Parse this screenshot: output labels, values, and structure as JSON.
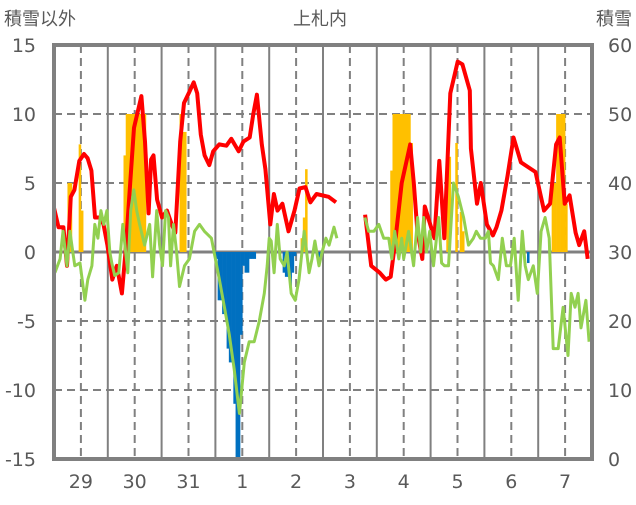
{
  "chart_data": {
    "type": "bar+line",
    "title": "上札内",
    "ylabel_left": "積雪以外",
    "ylabel_right": "積雪",
    "ylim_left": [
      -15,
      15
    ],
    "ylim_right": [
      0,
      60
    ],
    "yticks_left": [
      "15",
      "10",
      "5",
      "0",
      "-5",
      "-10",
      "-15"
    ],
    "yticks_right": [
      "60",
      "50",
      "40",
      "30",
      "20",
      "10",
      "0"
    ],
    "x_unit": "hours since start of day 29",
    "xlim": [
      0,
      240
    ],
    "xtick_labels": [
      "29",
      "30",
      "31",
      "1",
      "2",
      "3",
      "4",
      "5",
      "6",
      "7"
    ],
    "grid": true,
    "colors": {
      "red": "#FF0000",
      "green": "#92D050",
      "orange": "#FFC000",
      "blue": "#0070C0",
      "purple": "#7030A0",
      "frame": "#808080",
      "missing": "#A6A6A6"
    },
    "series": [
      {
        "name": "red-line",
        "axis": "left",
        "color": "#FF0000",
        "points": [
          [
            0,
            3.2
          ],
          [
            2,
            1.8
          ],
          [
            4.2,
            1.8
          ],
          [
            5.8,
            -1
          ],
          [
            7.5,
            4
          ],
          [
            9.1,
            4.5
          ],
          [
            11.3,
            6.6
          ],
          [
            13.4,
            7.1
          ],
          [
            15,
            6.8
          ],
          [
            16.7,
            5.9
          ],
          [
            18.3,
            2.5
          ],
          [
            20.5,
            2.5
          ],
          [
            22.1,
            2
          ],
          [
            23.8,
            0.5
          ],
          [
            26,
            -2
          ],
          [
            28,
            -1
          ],
          [
            30.3,
            -3
          ],
          [
            31.9,
            0
          ],
          [
            34,
            5
          ],
          [
            35.7,
            9
          ],
          [
            39,
            11.3
          ],
          [
            40.6,
            8
          ],
          [
            42.2,
            2.8
          ],
          [
            43.3,
            6.7
          ],
          [
            44.4,
            7
          ],
          [
            46,
            3.8
          ],
          [
            48.2,
            2.5
          ],
          [
            50.4,
            3
          ],
          [
            52.5,
            2
          ],
          [
            54.1,
            1.4
          ],
          [
            56.3,
            8
          ],
          [
            58,
            10.8
          ],
          [
            60.1,
            11.5
          ],
          [
            62.3,
            12.3
          ],
          [
            63.9,
            11.5
          ],
          [
            65.5,
            8.5
          ],
          [
            67.2,
            7
          ],
          [
            69.3,
            6.3
          ],
          [
            71,
            7.3
          ],
          [
            73.7,
            7.8
          ],
          [
            76.9,
            7.7
          ],
          [
            79.1,
            8.2
          ],
          [
            81.3,
            7.6
          ],
          [
            82.4,
            7.3
          ],
          [
            84.5,
            8
          ],
          [
            87.3,
            8.3
          ],
          [
            88.9,
            10
          ],
          [
            90.5,
            11.4
          ],
          [
            92.7,
            7.8
          ],
          [
            94.3,
            6
          ],
          [
            96.5,
            2
          ],
          [
            98.1,
            4.2
          ],
          [
            99.7,
            3
          ],
          [
            101.9,
            3.5
          ],
          [
            104.6,
            1.5
          ],
          [
            107.3,
            3
          ],
          [
            109.5,
            4.6
          ],
          [
            112.2,
            4.7
          ],
          [
            114.4,
            3.6
          ],
          [
            117.1,
            4.2
          ],
          [
            122.5,
            4
          ],
          [
            125.8,
            3.6
          ],
          null,
          [
            138.8,
            2.7
          ],
          [
            141.5,
            -1
          ],
          [
            145.3,
            -1.5
          ],
          [
            148,
            -2
          ],
          [
            150.2,
            -1.8
          ],
          [
            152.4,
            1
          ],
          [
            155.1,
            5
          ],
          [
            158.9,
            7.8
          ],
          [
            160.5,
            5
          ],
          [
            162.1,
            1.5
          ],
          [
            164.3,
            -0.5
          ],
          [
            165.4,
            3.3
          ],
          [
            169.7,
            1
          ],
          [
            171.9,
            6.6
          ],
          [
            174.1,
            1
          ],
          [
            176.8,
            11.5
          ],
          [
            180.1,
            13.8
          ],
          [
            182.2,
            13.6
          ],
          [
            185.5,
            11.7
          ],
          [
            186,
            7.5
          ],
          [
            188.7,
            3.5
          ],
          [
            190.4,
            5
          ],
          [
            193.1,
            2
          ],
          [
            195.8,
            1.2
          ],
          [
            197.4,
            1.8
          ],
          [
            199.6,
            3
          ],
          [
            202.3,
            5.5
          ],
          [
            205,
            8.3
          ],
          [
            208.3,
            6.5
          ],
          [
            211,
            6.2
          ],
          [
            214.8,
            5.8
          ],
          [
            218.6,
            3
          ],
          [
            221.3,
            3.5
          ],
          [
            224,
            7.8
          ],
          [
            225.6,
            8.3
          ],
          [
            227.8,
            3.5
          ],
          [
            230,
            4.1
          ],
          [
            232.7,
            1.4
          ],
          [
            234.3,
            0.5
          ],
          [
            236.5,
            1.5
          ],
          [
            238.1,
            -0.5
          ]
        ]
      },
      {
        "name": "green-line",
        "axis": "left",
        "color": "#92D050",
        "points": [
          [
            0.4,
            -1.5
          ],
          [
            2.7,
            -0.5
          ],
          [
            4,
            1.5
          ],
          [
            5.8,
            -1
          ],
          [
            7.1,
            1.5
          ],
          [
            8.4,
            0
          ],
          [
            9.3,
            -1
          ],
          [
            11.6,
            -0.8
          ],
          [
            13.8,
            -3.5
          ],
          [
            15.1,
            -2
          ],
          [
            16.9,
            -1
          ],
          [
            18.2,
            2
          ],
          [
            19.6,
            1
          ],
          [
            20.9,
            3
          ],
          [
            22.2,
            2
          ],
          [
            23.6,
            3
          ],
          [
            24.9,
            0
          ],
          [
            25.8,
            -0.8
          ],
          [
            27.1,
            -1.7
          ],
          [
            28.9,
            -1.5
          ],
          [
            30.7,
            2
          ],
          [
            32.9,
            -1.5
          ],
          [
            34.2,
            3
          ],
          [
            35.6,
            4.5
          ],
          [
            36.9,
            3
          ],
          [
            38.2,
            2
          ],
          [
            40.4,
            0.5
          ],
          [
            42.7,
            2
          ],
          [
            44,
            -1.8
          ],
          [
            45.8,
            3
          ],
          [
            47.1,
            0.5
          ],
          [
            48.4,
            -1
          ],
          [
            49.8,
            3
          ],
          [
            51.1,
            2.5
          ],
          [
            52,
            -1
          ],
          [
            53.3,
            2
          ],
          [
            54.7,
            0
          ],
          [
            56,
            -2.5
          ],
          [
            58.2,
            -1
          ],
          [
            60.4,
            -0.5
          ],
          [
            62.7,
            1.5
          ],
          [
            64.9,
            2
          ],
          [
            67.1,
            1.5
          ],
          [
            70.2,
            1
          ],
          [
            72,
            -0.5
          ],
          [
            73.8,
            -2
          ],
          [
            76,
            -4
          ],
          [
            78.2,
            -6
          ],
          [
            80.4,
            -8.5
          ],
          [
            82.7,
            -11.7
          ],
          [
            84.9,
            -8
          ],
          [
            87.1,
            -6.5
          ],
          [
            89.3,
            -6.5
          ],
          [
            91.6,
            -5
          ],
          [
            93.8,
            -3
          ],
          [
            95.1,
            -1
          ],
          [
            96,
            1
          ],
          [
            96.9,
            0.8
          ],
          [
            98.2,
            -1.5
          ],
          [
            99.6,
            2
          ],
          [
            100.9,
            -0.5
          ],
          [
            102.7,
            -1
          ],
          [
            104,
            0
          ],
          [
            105.8,
            -3
          ],
          [
            107.6,
            -3.5
          ],
          [
            109.3,
            -2
          ],
          [
            111.6,
            1.5
          ],
          [
            113.8,
            -1.5
          ],
          [
            115.1,
            -0.5
          ],
          [
            116.4,
            0.8
          ],
          [
            118.2,
            -1
          ],
          [
            119.6,
            0
          ],
          [
            121.3,
            1
          ],
          [
            122.7,
            0.5
          ],
          [
            124.9,
            1.8
          ],
          [
            126.2,
            1
          ],
          null,
          [
            138.7,
            2.5
          ],
          [
            140.4,
            1.5
          ],
          [
            142.7,
            1.5
          ],
          [
            144.9,
            2
          ],
          [
            147.1,
            1
          ],
          [
            149.3,
            1
          ],
          [
            150.7,
            -0.5
          ],
          [
            152,
            1.5
          ],
          [
            153.8,
            -0.5
          ],
          [
            155.1,
            1
          ],
          [
            156,
            -0.5
          ],
          [
            158.2,
            1.5
          ],
          [
            160.4,
            -1
          ],
          [
            162.2,
            2.5
          ],
          [
            163.6,
            0
          ],
          [
            164.9,
            2.5
          ],
          [
            166.2,
            0
          ],
          [
            167.6,
            1.5
          ],
          [
            169.3,
            -1
          ],
          [
            171.6,
            2.5
          ],
          [
            172.9,
            -0.8
          ],
          [
            174.2,
            -1
          ],
          [
            176,
            -1
          ],
          [
            178.2,
            5
          ],
          [
            180.4,
            4
          ],
          [
            182.7,
            2.5
          ],
          [
            184.9,
            0.5
          ],
          [
            187.1,
            1
          ],
          [
            188.4,
            1.5
          ],
          [
            190.2,
            1
          ],
          [
            192.4,
            1
          ],
          [
            193.8,
            1.5
          ],
          [
            194.7,
            -0.8
          ],
          [
            196,
            -1
          ],
          [
            198.2,
            -2
          ],
          [
            200,
            1
          ],
          [
            201.8,
            -1
          ],
          [
            203.6,
            -1
          ],
          [
            205.3,
            1
          ],
          [
            207.1,
            -3.5
          ],
          [
            208.9,
            1.5
          ],
          [
            210.2,
            -1
          ],
          [
            211.6,
            -2
          ],
          [
            213.8,
            -1
          ],
          [
            215.6,
            -3
          ],
          [
            217.3,
            1.5
          ],
          [
            219.1,
            2.5
          ],
          [
            220.9,
            1
          ],
          [
            222.7,
            -7
          ],
          [
            224.9,
            -7
          ],
          [
            227.1,
            -4
          ],
          [
            229.3,
            -7.5
          ],
          [
            230.7,
            -3
          ],
          [
            232.4,
            -4
          ],
          [
            233.8,
            -3
          ],
          [
            235.1,
            -5.5
          ],
          [
            237.3,
            -3.5
          ],
          [
            238.7,
            -6.5
          ]
        ]
      },
      {
        "name": "orange-bars",
        "axis": "left",
        "color": "#FFC000",
        "hourly": [
          [
            6,
            5
          ],
          [
            7,
            5
          ],
          [
            11,
            7.8
          ],
          [
            12,
            3
          ],
          [
            31,
            7
          ],
          [
            32,
            10
          ],
          [
            33,
            10
          ],
          [
            34,
            10
          ],
          [
            35,
            10
          ],
          [
            36,
            10
          ],
          [
            37,
            10
          ],
          [
            38,
            10
          ],
          [
            39,
            10
          ],
          [
            40,
            10
          ],
          [
            56,
            10
          ],
          [
            57,
            8.7
          ],
          [
            58,
            8.7
          ],
          [
            110,
            1
          ],
          [
            111,
            2.5
          ],
          [
            112,
            6
          ],
          [
            150,
            5.9
          ],
          [
            151,
            10
          ],
          [
            152,
            10
          ],
          [
            153,
            10
          ],
          [
            154,
            10
          ],
          [
            155,
            10
          ],
          [
            156,
            10
          ],
          [
            157,
            10
          ],
          [
            158,
            10
          ],
          [
            159,
            7.9
          ],
          [
            175,
            6.9
          ],
          [
            176,
            6.9
          ],
          [
            179,
            7.9
          ],
          [
            181,
            2.9
          ],
          [
            182,
            1.5
          ],
          [
            222,
            5
          ],
          [
            223,
            5
          ],
          [
            224,
            10
          ],
          [
            225,
            10
          ],
          [
            226,
            10
          ],
          [
            227,
            10
          ],
          [
            228,
            3.5
          ]
        ]
      },
      {
        "name": "blue-bars",
        "axis": "left",
        "color": "#0070C0",
        "hourly": [
          [
            72,
            -0.5
          ],
          [
            73,
            -3.5
          ],
          [
            74,
            -3.5
          ],
          [
            75,
            -4.5
          ],
          [
            76,
            -4.5
          ],
          [
            77,
            -7
          ],
          [
            78,
            -8
          ],
          [
            79,
            -8
          ],
          [
            80,
            -11
          ],
          [
            81,
            -15
          ],
          [
            82,
            -15
          ],
          [
            83,
            -6
          ],
          [
            84,
            -1
          ],
          [
            85,
            -1.5
          ],
          [
            86,
            -1.5
          ],
          [
            87,
            -0.5
          ],
          [
            88,
            -0.5
          ],
          [
            89,
            -0.5
          ],
          [
            102,
            -1.5
          ],
          [
            103,
            -1.8
          ],
          [
            104,
            -1.8
          ],
          [
            105,
            -2.6
          ],
          [
            106,
            -1.5
          ],
          [
            107,
            -0.3
          ],
          [
            118,
            -0.4
          ],
          [
            211,
            -0.8
          ]
        ]
      },
      {
        "name": "snow-depth",
        "axis": "right",
        "color": "#7030A0",
        "value": 0,
        "missing_range": [
          126.5,
          138.5
        ]
      }
    ]
  }
}
